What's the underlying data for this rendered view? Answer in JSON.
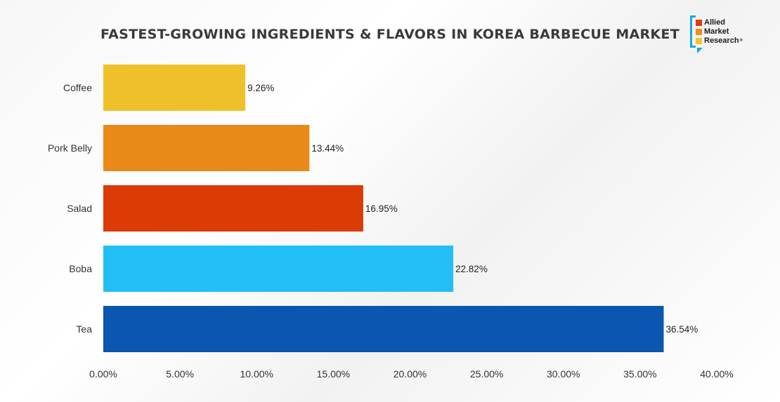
{
  "chart_data": {
    "type": "bar",
    "orientation": "horizontal",
    "title": "FASTEST-GROWING INGREDIENTS & FLAVORS IN KOREA BARBECUE MARKET",
    "categories": [
      "Coffee",
      "Pork Belly",
      "Salad",
      "Boba",
      "Tea"
    ],
    "values": [
      9.26,
      13.44,
      16.95,
      22.82,
      36.54
    ],
    "value_labels": [
      "9.26%",
      "13.44%",
      "16.95%",
      "22.82%",
      "36.54%"
    ],
    "colors": [
      "#f0c02a",
      "#e88918",
      "#dc3a06",
      "#21bff5",
      "#0a56b0"
    ],
    "xlim": [
      0,
      40
    ],
    "xticks": [
      0,
      5,
      10,
      15,
      20,
      25,
      30,
      35,
      40
    ],
    "xtick_labels": [
      "0.00%",
      "5.00%",
      "10.00%",
      "15.00%",
      "20.00%",
      "25.00%",
      "30.00%",
      "35.00%",
      "40.00%"
    ],
    "xlabel": "",
    "ylabel": "",
    "grid": false,
    "legend": "none"
  },
  "logo": {
    "lines": [
      "Allied",
      "Market",
      "Research"
    ],
    "mark": "®",
    "colors": [
      "#e03a0c",
      "#f28c1b",
      "#f4c430"
    ]
  }
}
